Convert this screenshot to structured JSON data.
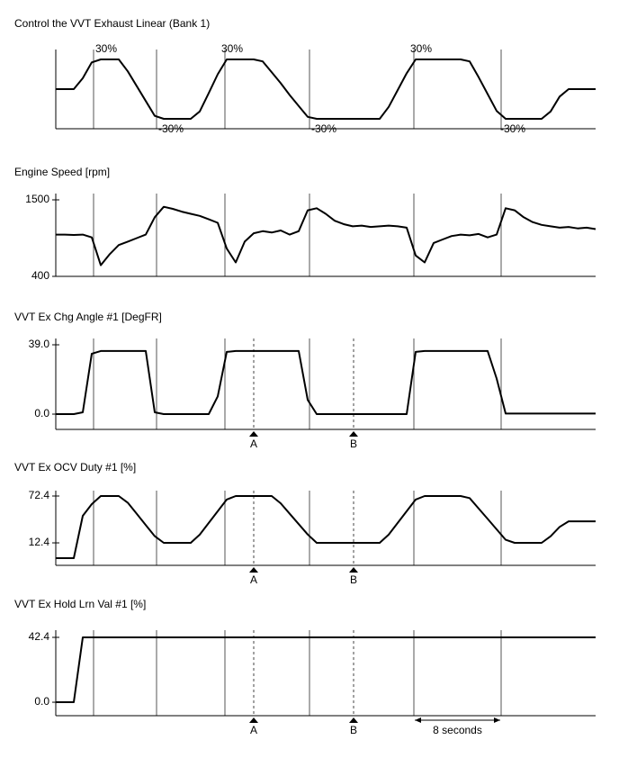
{
  "chart_data": [
    {
      "type": "line",
      "title": "Control the VVT Exhaust Linear (Bank 1)",
      "ylim": [
        -40,
        40
      ],
      "values": [
        0,
        0,
        0,
        11,
        27,
        30,
        30,
        30,
        18,
        3,
        -12,
        -27,
        -30,
        -30,
        -30,
        -30,
        -22.5,
        -4,
        15,
        30,
        30,
        30,
        30,
        28,
        17,
        6,
        -6,
        -17,
        -28,
        -30,
        -30,
        -30,
        -30,
        -30,
        -30,
        -30,
        -30,
        -18,
        -1,
        16,
        30,
        30,
        30,
        30,
        30,
        30,
        28,
        12,
        -5,
        -22,
        -30,
        -30,
        -30,
        -30,
        -30,
        -22.5,
        -7.5,
        0,
        0,
        0,
        0
      ],
      "value_labels": [
        null,
        null,
        null,
        null,
        null,
        "30%",
        null,
        null,
        null,
        null,
        null,
        null,
        "-30%",
        null,
        null,
        null,
        null,
        null,
        null,
        "30%",
        null,
        null,
        null,
        null,
        null,
        null,
        null,
        null,
        null,
        "-30%",
        null,
        null,
        null,
        null,
        null,
        null,
        null,
        null,
        null,
        null,
        "30%",
        null,
        null,
        null,
        null,
        null,
        null,
        null,
        null,
        null,
        "-30%",
        null,
        null,
        null,
        null,
        null,
        null,
        null,
        null,
        null,
        null
      ]
    },
    {
      "type": "line",
      "title": "Engine Speed [rpm]",
      "ylim": [
        400,
        1500
      ],
      "yticks": [
        1500,
        400
      ],
      "values": [
        1000,
        1000,
        995,
        1000,
        960,
        560,
        720,
        850,
        900,
        950,
        1000,
        1250,
        1400,
        1370,
        1330,
        1300,
        1270,
        1220,
        1170,
        800,
        600,
        900,
        1020,
        1050,
        1030,
        1060,
        1000,
        1050,
        1350,
        1380,
        1300,
        1200,
        1150,
        1120,
        1130,
        1110,
        1120,
        1130,
        1120,
        1100,
        700,
        600,
        880,
        930,
        980,
        1000,
        990,
        1010,
        960,
        1000,
        1380,
        1350,
        1250,
        1180,
        1140,
        1120,
        1100,
        1110,
        1090,
        1100,
        1080
      ]
    },
    {
      "type": "line",
      "title": "VVT Ex Chg Angle #1 [DegFR]",
      "ylim": [
        -8.6,
        39
      ],
      "yticks": [
        {
          "value": 39,
          "label": "39.0"
        },
        {
          "value": 0,
          "label": "0.0"
        }
      ],
      "markers": [
        "A",
        "B"
      ],
      "values": [
        0,
        0,
        0,
        1,
        34,
        35.5,
        35.5,
        35.5,
        35.5,
        35.5,
        35.5,
        1,
        0,
        0,
        0,
        0,
        0,
        0,
        10,
        35,
        35.5,
        35.5,
        35.5,
        35.5,
        35.5,
        35.5,
        35.5,
        35.5,
        8,
        0,
        0,
        0,
        0,
        0,
        0,
        0,
        0,
        0,
        0,
        0,
        35,
        35.5,
        35.5,
        35.5,
        35.5,
        35.5,
        35.5,
        35.5,
        35.5,
        20,
        0.3,
        0.3,
        0.3,
        0.3,
        0.3,
        0.3,
        0.3,
        0.3,
        0.3,
        0.3,
        0.3
      ]
    },
    {
      "type": "line",
      "title": "VVT Ex OCV Duty #1 [%]",
      "ylim": [
        -16.4,
        79.3
      ],
      "yticks": [
        72.4,
        12.4
      ],
      "markers": [
        "A",
        "B"
      ],
      "values": [
        -7.2,
        -7.2,
        -7.2,
        47,
        62,
        72.4,
        72.4,
        72.4,
        63.8,
        49.5,
        35.3,
        21,
        12.4,
        12.4,
        12.4,
        12.4,
        22.9,
        37.9,
        52.9,
        67.9,
        72.4,
        72.4,
        72.4,
        72.4,
        72.4,
        63.1,
        49.7,
        36.4,
        23.1,
        12.4,
        12.4,
        12.4,
        12.4,
        12.4,
        12.4,
        12.4,
        12.4,
        22.9,
        37.9,
        52.9,
        67.9,
        72.4,
        72.4,
        72.4,
        72.4,
        72.4,
        69.7,
        56.4,
        43.1,
        29.7,
        16.4,
        12.4,
        12.4,
        12.4,
        12.4,
        20.8,
        32.8,
        40,
        40,
        40,
        40
      ]
    },
    {
      "type": "line",
      "title": "VVT Ex Hold Lrn Val #1 [%]",
      "ylim": [
        -8.8,
        47.1
      ],
      "yticks": [
        42.4,
        {
          "value": 0,
          "label": "0.0"
        }
      ],
      "markers": [
        "A",
        "B"
      ],
      "span_label": "8 seconds",
      "values": [
        0,
        0,
        0,
        42.4,
        42.4,
        42.4,
        42.4,
        42.4,
        42.4,
        42.4,
        42.4,
        42.4,
        42.4,
        42.4,
        42.4,
        42.4,
        42.4,
        42.4,
        42.4,
        42.4,
        42.4,
        42.4,
        42.4,
        42.4,
        42.4,
        42.4,
        42.4,
        42.4,
        42.4,
        42.4,
        42.4,
        42.4,
        42.4,
        42.4,
        42.4,
        42.4,
        42.4,
        42.4,
        42.4,
        42.4,
        42.4,
        42.4,
        42.4,
        42.4,
        42.4,
        42.4,
        42.4,
        42.4,
        42.4,
        42.4,
        42.4,
        42.4,
        42.4,
        42.4,
        42.4,
        42.4,
        42.4,
        42.4,
        42.4,
        42.4,
        42.4
      ]
    }
  ]
}
